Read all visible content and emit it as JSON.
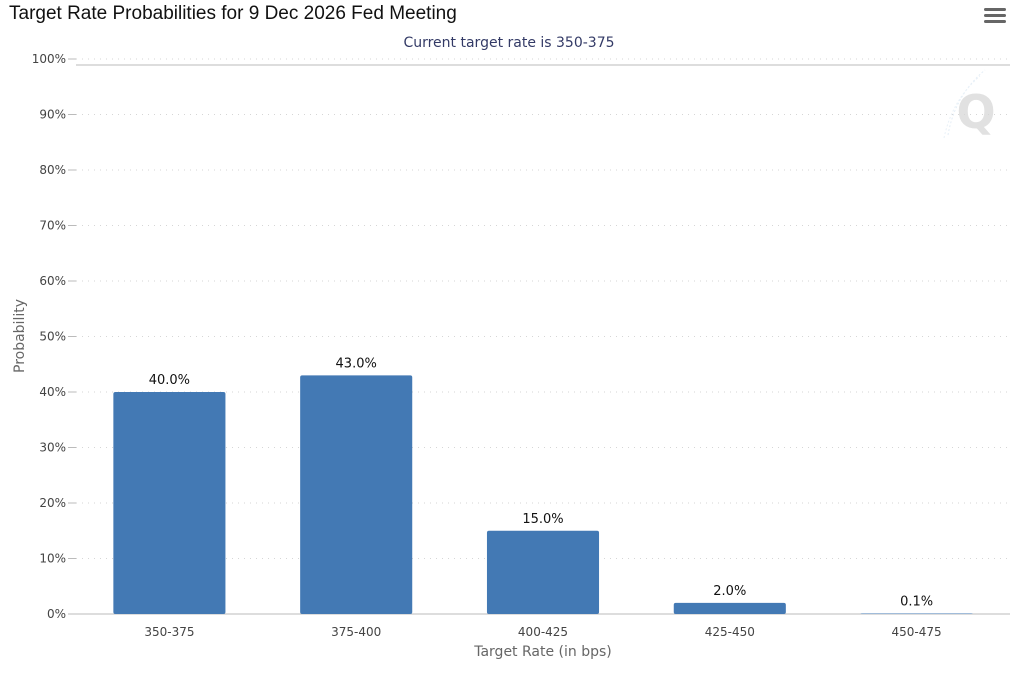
{
  "page": {
    "title": "Target Rate Probabilities for 9 Dec 2026 Fed Meeting",
    "menu_icon": "hamburger-menu-icon",
    "watermark_icon": "q-logo-icon",
    "watermark_text": "Q"
  },
  "chart_data": {
    "type": "bar",
    "title": "Target Rate Probabilities for 9 Dec 2026 Fed Meeting",
    "subtitle": "Current target rate is 350-375",
    "xlabel": "Target Rate (in bps)",
    "ylabel": "Probability",
    "categories": [
      "350-375",
      "375-400",
      "400-425",
      "425-450",
      "450-475"
    ],
    "values": [
      40.0,
      43.0,
      15.0,
      2.0,
      0.1
    ],
    "data_labels": [
      "40.0%",
      "43.0%",
      "15.0%",
      "2.0%",
      "0.1%"
    ],
    "ylim": [
      0,
      100
    ],
    "yticks": [
      0,
      10,
      20,
      30,
      40,
      50,
      60,
      70,
      80,
      90,
      100
    ],
    "ytick_labels": [
      "0%",
      "10%",
      "20%",
      "30%",
      "40%",
      "50%",
      "60%",
      "70%",
      "80%",
      "90%",
      "100%"
    ],
    "grid": true,
    "legend": "none",
    "bar_color": "#4379b4",
    "subtitle_color": "#333a66"
  }
}
